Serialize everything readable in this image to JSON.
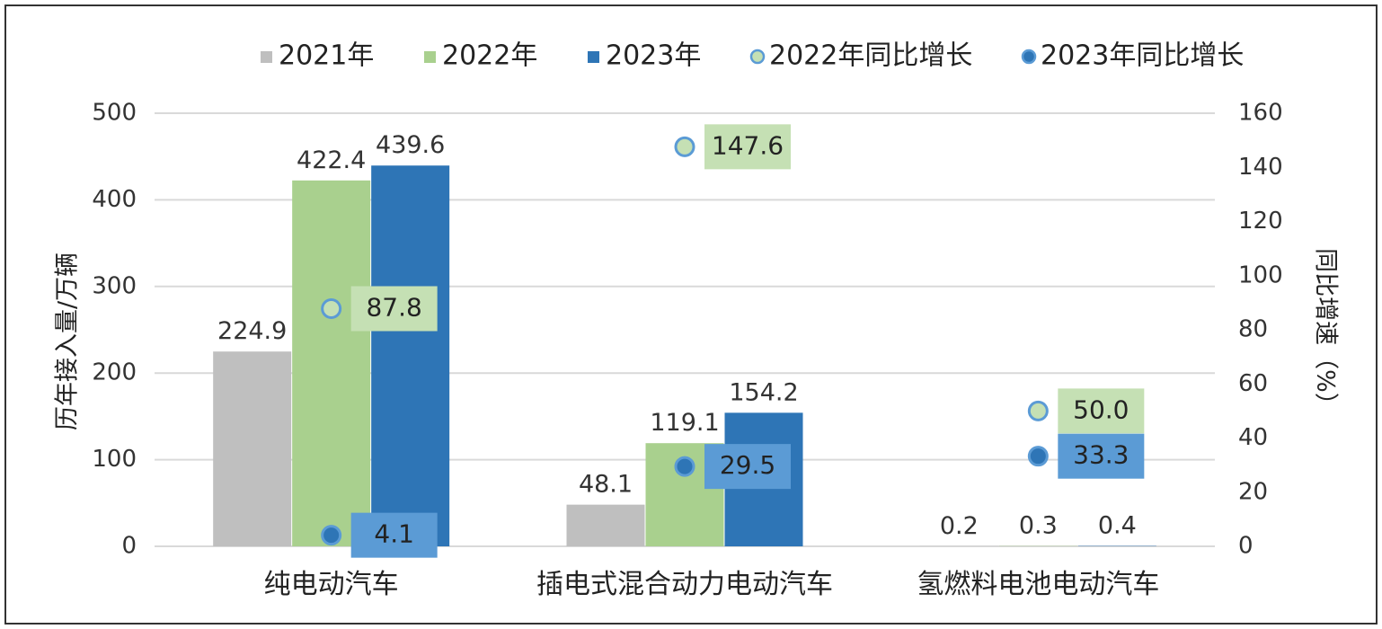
{
  "chart_data": {
    "type": "bar",
    "categories": [
      "纯电动汽车",
      "插电式混合动力电动汽车",
      "氢燃料电池电动汽车"
    ],
    "series": [
      {
        "name": "2021年",
        "values": [
          224.9,
          48.1,
          0.2
        ],
        "color": "#bfbfbf"
      },
      {
        "name": "2022年",
        "values": [
          422.4,
          119.1,
          0.3
        ],
        "color": "#a9d08e"
      },
      {
        "name": "2023年",
        "values": [
          439.6,
          154.2,
          0.4
        ],
        "color": "#2e75b6"
      }
    ],
    "growth_series": [
      {
        "name": "2022年同比增长",
        "values": [
          87.8,
          147.6,
          50.0
        ],
        "color": "#c5e0b4",
        "stroke": "#5b9bd5"
      },
      {
        "name": "2023年同比增长",
        "values": [
          4.1,
          29.5,
          33.3
        ],
        "color": "#2e75b6",
        "stroke": "#5b9bd5"
      }
    ],
    "y_left": {
      "label": "历年接入量/万辆",
      "lim": [
        0,
        500
      ],
      "ticks": [
        "0",
        "100",
        "200",
        "300",
        "400",
        "500"
      ]
    },
    "y_right": {
      "label": "同比增速（%）",
      "lim": [
        0,
        160
      ],
      "ticks": [
        "0",
        "20",
        "40",
        "60",
        "80",
        "100",
        "120",
        "140",
        "160"
      ]
    },
    "grid": true,
    "legend": "top"
  }
}
